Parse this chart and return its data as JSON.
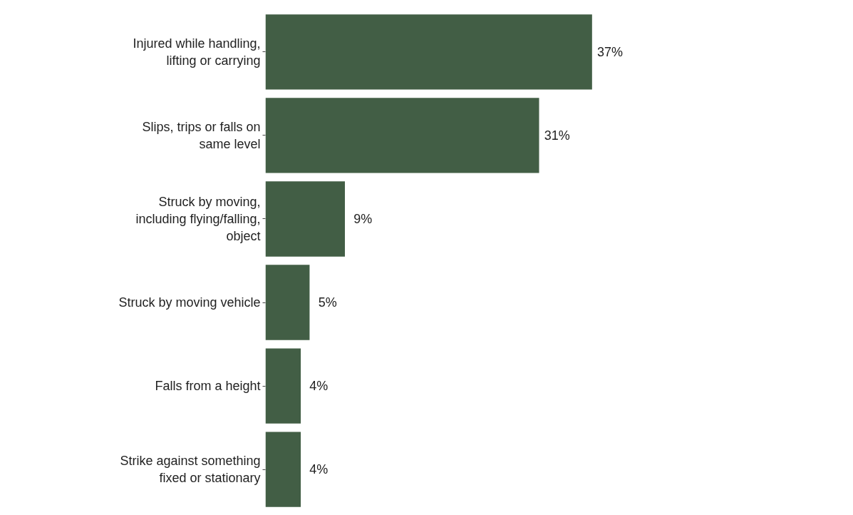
{
  "chart_data": {
    "type": "bar",
    "orientation": "horizontal",
    "categories": [
      "Injured while handling, lifting or carrying",
      "Slips, trips or falls on same level",
      "Struck by moving, including flying/falling, object",
      "Struck by moving vehicle",
      "Falls from a height",
      "Strike against something fixed or stationary"
    ],
    "values": [
      37,
      31,
      9,
      5,
      4,
      4
    ],
    "value_labels": [
      "37%",
      "31%",
      "9%",
      "5%",
      "4%",
      "4%"
    ],
    "color": "#425e45",
    "grid": false
  }
}
